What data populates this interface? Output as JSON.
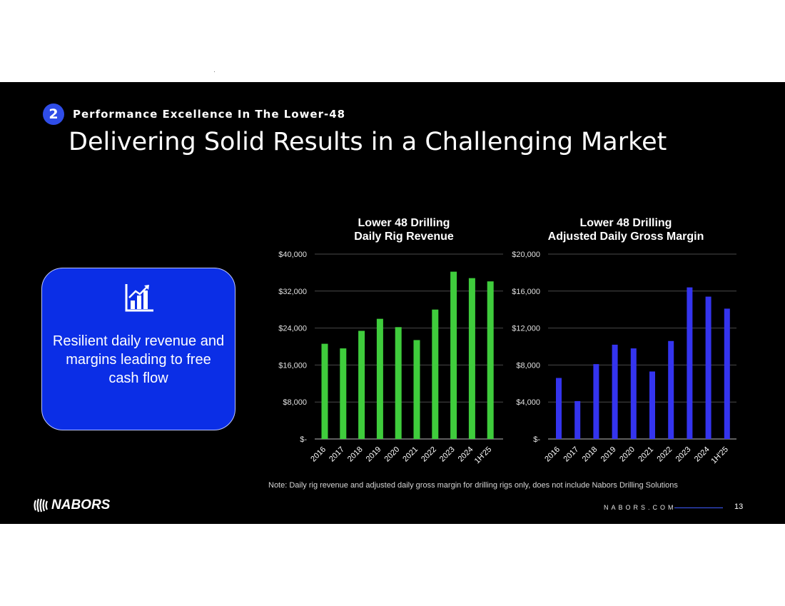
{
  "section": {
    "number": "2",
    "label": "Performance Excellence In The Lower-48"
  },
  "page_title": "Delivering Solid Results in a Challenging Market",
  "callout": {
    "icon": "bar-chart-growth-icon",
    "text": "Resilient daily revenue and margins leading to free cash flow"
  },
  "colors": {
    "revenue_bars": "#3fcc3c",
    "margin_bars": "#3434ee",
    "callout_bg": "#0b2ee6",
    "accent": "#2f4de8"
  },
  "chart_data": [
    {
      "type": "bar",
      "title": [
        "Lower 48 Drilling",
        "Daily Rig Revenue"
      ],
      "categories": [
        "2016",
        "2017",
        "2018",
        "2019",
        "2020",
        "2021",
        "2022",
        "2023",
        "2024",
        "1H'25"
      ],
      "values": [
        20600,
        19600,
        23400,
        26000,
        24200,
        21400,
        28000,
        36200,
        34800,
        34100
      ],
      "ylim": [
        0,
        40000
      ],
      "yticks": [
        0,
        8000,
        16000,
        24000,
        32000,
        40000
      ],
      "ytick_labels": [
        "$-",
        "$8,000",
        "$16,000",
        "$24,000",
        "$32,000",
        "$40,000"
      ],
      "grid": true,
      "color": "#3fcc3c"
    },
    {
      "type": "bar",
      "title": [
        "Lower 48 Drilling",
        "Adjusted Daily Gross Margin"
      ],
      "categories": [
        "2016",
        "2017",
        "2018",
        "2019",
        "2020",
        "2021",
        "2022",
        "2023",
        "2024",
        "1H'25"
      ],
      "values": [
        6600,
        4100,
        8100,
        10200,
        9800,
        7300,
        10600,
        16400,
        15400,
        14100
      ],
      "ylim": [
        0,
        20000
      ],
      "yticks": [
        0,
        4000,
        8000,
        12000,
        16000,
        20000
      ],
      "ytick_labels": [
        "$-",
        "$4,000",
        "$8,000",
        "$12,000",
        "$16,000",
        "$20,000"
      ],
      "grid": true,
      "color": "#3434ee"
    }
  ],
  "note": "Note: Daily rig revenue and adjusted daily gross margin for drilling rigs only, does not include Nabors Drilling Solutions",
  "footer": {
    "logo_text": "NABORS",
    "logo_icon": "nabors-logo-icon",
    "website": "NABORS.COM",
    "page_number": "13"
  }
}
